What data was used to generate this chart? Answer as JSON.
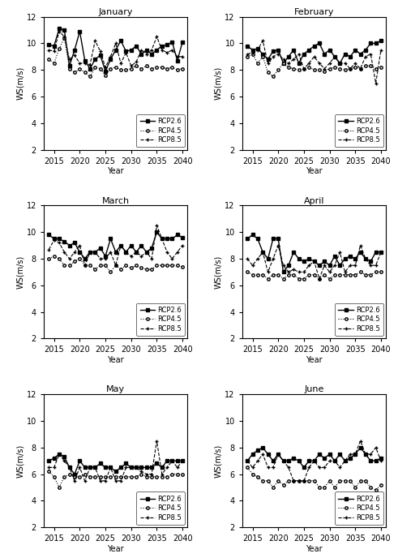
{
  "months": [
    "January",
    "February",
    "March",
    "April",
    "May",
    "June"
  ],
  "years": [
    2014,
    2015,
    2016,
    2017,
    2018,
    2019,
    2020,
    2021,
    2022,
    2023,
    2024,
    2025,
    2026,
    2027,
    2028,
    2029,
    2030,
    2031,
    2032,
    2033,
    2034,
    2035,
    2036,
    2037,
    2038,
    2039,
    2040
  ],
  "rcp26_jan": [
    9.9,
    9.8,
    11.1,
    11.0,
    8.3,
    9.5,
    10.9,
    8.7,
    8.1,
    8.8,
    9.1,
    7.9,
    8.8,
    9.5,
    10.2,
    9.4,
    9.5,
    9.8,
    9.2,
    9.5,
    9.2,
    9.5,
    9.8,
    9.9,
    10.1,
    8.7,
    10.1
  ],
  "rcp45_jan": [
    8.8,
    8.5,
    9.6,
    10.4,
    8.1,
    7.8,
    8.1,
    7.8,
    7.5,
    8.2,
    8.1,
    7.6,
    8.1,
    8.2,
    8.0,
    8.0,
    8.1,
    8.3,
    8.1,
    8.3,
    8.1,
    8.2,
    8.2,
    8.1,
    8.2,
    8.0,
    8.1
  ],
  "rcp85_jan": [
    9.5,
    9.4,
    10.9,
    10.5,
    8.8,
    9.1,
    8.5,
    8.5,
    8.4,
    10.2,
    9.4,
    8.2,
    9.0,
    10.0,
    8.5,
    9.3,
    8.3,
    8.6,
    9.5,
    9.2,
    9.5,
    10.5,
    9.5,
    9.3,
    9.5,
    9.0,
    9.0
  ],
  "rcp26_feb": [
    9.8,
    9.5,
    9.6,
    9.2,
    8.8,
    9.4,
    9.5,
    8.5,
    9.0,
    9.5,
    8.5,
    9.2,
    9.5,
    9.8,
    10.0,
    9.2,
    9.5,
    9.0,
    8.5,
    9.2,
    9.0,
    9.5,
    9.2,
    9.5,
    10.0,
    10.0,
    10.2
  ],
  "rcp45_feb": [
    9.0,
    9.2,
    8.5,
    9.0,
    7.8,
    7.5,
    8.0,
    8.5,
    8.2,
    8.1,
    8.0,
    8.1,
    8.2,
    8.0,
    8.0,
    7.9,
    8.1,
    8.2,
    8.1,
    8.0,
    8.1,
    8.2,
    8.1,
    8.3,
    8.3,
    8.1,
    8.2
  ],
  "rcp85_feb": [
    9.2,
    9.3,
    9.5,
    10.2,
    8.5,
    9.0,
    9.2,
    8.8,
    8.5,
    8.8,
    9.2,
    8.1,
    8.5,
    9.0,
    8.5,
    8.1,
    8.5,
    9.0,
    8.5,
    8.5,
    8.1,
    8.5,
    8.1,
    9.0,
    9.2,
    7.0,
    9.5
  ],
  "rcp26_mar": [
    9.8,
    9.5,
    9.5,
    9.3,
    9.0,
    9.2,
    8.5,
    8.0,
    8.5,
    8.5,
    8.8,
    8.2,
    9.5,
    8.5,
    9.0,
    8.5,
    9.0,
    8.5,
    9.0,
    8.5,
    8.8,
    10.0,
    9.5,
    9.5,
    9.5,
    9.8,
    9.6
  ],
  "rcp45_mar": [
    8.0,
    8.2,
    8.0,
    7.5,
    7.5,
    7.8,
    8.0,
    7.5,
    7.5,
    7.2,
    7.5,
    7.5,
    7.0,
    7.5,
    7.2,
    7.5,
    7.3,
    7.5,
    7.3,
    7.2,
    7.2,
    7.5,
    7.5,
    7.5,
    7.5,
    7.5,
    7.4
  ],
  "rcp85_mar": [
    8.7,
    9.4,
    9.2,
    8.5,
    8.0,
    8.5,
    9.0,
    7.5,
    8.5,
    8.5,
    8.0,
    8.0,
    8.5,
    7.5,
    9.0,
    8.5,
    8.2,
    8.5,
    8.2,
    8.5,
    8.0,
    10.5,
    9.5,
    8.5,
    8.0,
    8.5,
    9.0
  ],
  "rcp26_apr": [
    9.5,
    9.8,
    9.5,
    8.5,
    8.0,
    9.5,
    9.5,
    7.0,
    7.5,
    8.5,
    8.0,
    7.8,
    8.0,
    7.8,
    7.5,
    7.8,
    7.5,
    8.2,
    7.5,
    8.0,
    8.2,
    8.0,
    8.5,
    8.0,
    7.8,
    8.5,
    8.5
  ],
  "rcp45_apr": [
    7.0,
    6.8,
    6.8,
    6.8,
    6.5,
    6.8,
    6.8,
    6.5,
    6.8,
    6.8,
    6.5,
    6.5,
    6.8,
    6.8,
    6.5,
    6.8,
    6.5,
    6.8,
    6.8,
    6.8,
    6.8,
    6.8,
    7.0,
    6.8,
    6.8,
    7.0,
    7.0
  ],
  "rcp85_apr": [
    8.0,
    7.5,
    8.0,
    8.5,
    7.0,
    8.0,
    9.0,
    7.5,
    7.0,
    7.2,
    7.0,
    7.0,
    7.5,
    7.8,
    6.5,
    7.5,
    7.0,
    7.5,
    8.5,
    7.0,
    7.5,
    7.5,
    9.0,
    8.0,
    7.5,
    7.5,
    8.5
  ],
  "rcp26_may": [
    7.0,
    7.2,
    7.5,
    7.3,
    6.5,
    6.0,
    7.0,
    6.5,
    6.5,
    6.5,
    6.8,
    6.5,
    6.5,
    6.2,
    6.5,
    6.8,
    6.5,
    6.5,
    6.5,
    6.5,
    6.5,
    6.8,
    6.5,
    7.0,
    7.0,
    7.0,
    7.0
  ],
  "rcp45_may": [
    6.2,
    5.8,
    5.0,
    5.8,
    6.0,
    5.8,
    5.8,
    6.0,
    5.8,
    5.8,
    5.8,
    5.8,
    5.8,
    5.8,
    5.8,
    5.8,
    5.8,
    5.8,
    6.0,
    5.8,
    5.8,
    5.8,
    5.8,
    5.8,
    6.0,
    6.0,
    6.0
  ],
  "rcp85_may": [
    6.5,
    6.5,
    7.5,
    7.0,
    6.5,
    5.5,
    6.5,
    5.5,
    6.5,
    6.5,
    5.5,
    5.5,
    6.5,
    5.5,
    5.5,
    6.5,
    6.5,
    6.5,
    6.2,
    6.0,
    6.0,
    8.5,
    6.0,
    6.5,
    7.0,
    6.5,
    7.0
  ],
  "rcp26_jun": [
    7.0,
    7.5,
    7.8,
    8.0,
    7.5,
    7.0,
    7.5,
    7.0,
    7.0,
    7.2,
    7.0,
    6.5,
    7.0,
    7.0,
    7.5,
    7.2,
    7.5,
    7.0,
    7.5,
    7.0,
    7.2,
    7.5,
    8.0,
    7.5,
    7.0,
    7.0,
    7.2
  ],
  "rcp45_jun": [
    6.5,
    6.0,
    5.8,
    5.5,
    5.5,
    5.0,
    5.5,
    5.2,
    5.5,
    5.5,
    5.5,
    5.5,
    5.5,
    5.5,
    5.0,
    5.0,
    5.5,
    5.0,
    5.5,
    5.5,
    5.5,
    5.0,
    5.5,
    5.5,
    5.0,
    4.8,
    5.2
  ],
  "rcp85_jun": [
    7.0,
    6.5,
    7.0,
    7.5,
    6.5,
    6.5,
    7.5,
    7.0,
    6.5,
    5.5,
    5.5,
    5.5,
    6.5,
    7.0,
    6.5,
    6.5,
    7.0,
    7.0,
    6.5,
    7.0,
    7.5,
    7.5,
    8.5,
    7.5,
    7.5,
    8.0,
    7.0
  ],
  "ylim": [
    2,
    12
  ],
  "yticks": [
    2,
    4,
    6,
    8,
    10,
    12
  ],
  "xlim": [
    2013,
    2041
  ],
  "xticks": [
    2015,
    2020,
    2025,
    2030,
    2035,
    2040
  ],
  "ylabel": "WS(m/s)",
  "xlabel": "Year",
  "legend_labels": [
    "RCP2.6",
    "RCP4.5",
    "RCP8.5"
  ],
  "font_size": 7,
  "title_font_size": 8,
  "legend_font_size": 6
}
